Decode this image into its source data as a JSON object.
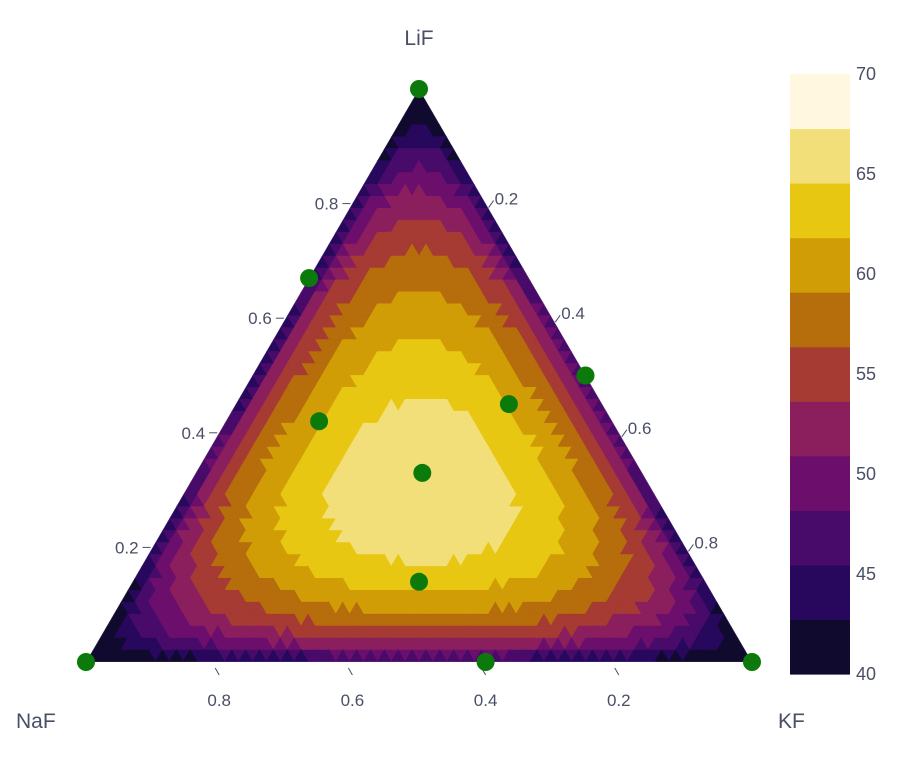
{
  "chart_data": {
    "type": "ternary-contour",
    "axes": {
      "top": "LiF",
      "left": "NaF",
      "right": "KF"
    },
    "ticks": [
      "0.2",
      "0.4",
      "0.6",
      "0.8"
    ],
    "colorbar": {
      "min": 40,
      "max": 70,
      "tick_labels": [
        "40",
        "45",
        "50",
        "55",
        "60",
        "65",
        "70"
      ],
      "tick_values": [
        40,
        45,
        50,
        55,
        60,
        65,
        70
      ],
      "colors": [
        "#100a2e",
        "#27085c",
        "#490b6a",
        "#6c0f6c",
        "#8b1f5e",
        "#a63b33",
        "#b66d0b",
        "#d19d06",
        "#e8c713",
        "#f2df79",
        "#fff7df"
      ]
    },
    "points": [
      {
        "LiF": 1.0,
        "NaF": 0.0,
        "KF": 0.0
      },
      {
        "LiF": 0.0,
        "NaF": 1.0,
        "KF": 0.0
      },
      {
        "LiF": 0.0,
        "NaF": 0.0,
        "KF": 1.0
      },
      {
        "LiF": 0.67,
        "NaF": 0.33,
        "KF": 0.0
      },
      {
        "LiF": 0.5,
        "NaF": 0.0,
        "KF": 0.5
      },
      {
        "LiF": 0.0,
        "NaF": 0.4,
        "KF": 0.6
      },
      {
        "LiF": 0.42,
        "NaF": 0.44,
        "KF": 0.14
      },
      {
        "LiF": 0.45,
        "NaF": 0.14,
        "KF": 0.41
      },
      {
        "LiF": 0.33,
        "NaF": 0.33,
        "KF": 0.34
      },
      {
        "LiF": 0.14,
        "NaF": 0.43,
        "KF": 0.43
      }
    ],
    "point_color": "#0b7a0b"
  }
}
